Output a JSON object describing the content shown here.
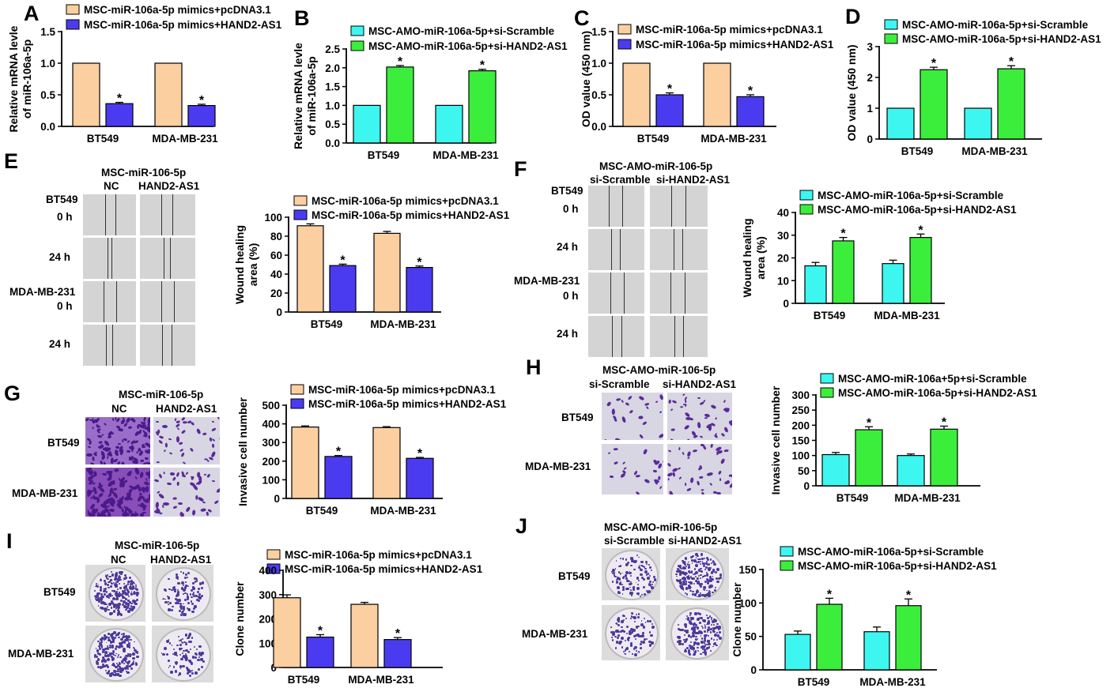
{
  "colors": {
    "orange": "#FCCFA0",
    "blue": "#4B3BF0",
    "cyan": "#3DF6F0",
    "green": "#3CEE3C",
    "wound_bg": "#d4d4d4",
    "stain": "#5a2a9a",
    "clone_stain": "#4a3a9a"
  },
  "charts": {
    "A": {
      "letter": "A",
      "type": "bar",
      "ylabel": [
        "Relative mRNA levle",
        "of miR-106a-5p"
      ],
      "ylim": [
        0,
        1.5
      ],
      "yticks": [
        "0.0",
        "0.5",
        "1.0",
        "1.5"
      ],
      "categories": [
        "BT549",
        "MDA-MB-231"
      ],
      "series": [
        {
          "name": "MSC-miR-106a-5p mimics+pcDNA3.1",
          "color_key": "orange",
          "values": [
            1.0,
            1.0
          ],
          "errors": [
            0,
            0
          ]
        },
        {
          "name": "MSC-miR-106a-5p mimics+HAND2-AS1",
          "color_key": "blue",
          "values": [
            0.36,
            0.33
          ],
          "errors": [
            0.02,
            0.02
          ]
        }
      ],
      "sig": [
        "*",
        "*"
      ]
    },
    "B": {
      "letter": "B",
      "type": "bar",
      "ylabel": [
        "Relative mRNA levle",
        "of miR-106a-5p"
      ],
      "ylim": [
        0,
        2.5
      ],
      "yticks": [
        "0.0",
        "0.5",
        "1.0",
        "1.5",
        "2.0",
        "2.5"
      ],
      "categories": [
        "BT549",
        "MDA-MB-231"
      ],
      "series": [
        {
          "name": "MSC-AMO-miR-106a-5p+si-Scramble",
          "color_key": "cyan",
          "values": [
            1.0,
            1.0
          ],
          "errors": [
            0,
            0
          ]
        },
        {
          "name": "MSC-AMO-miR-106a-5p+si-HAND2-AS1",
          "color_key": "green",
          "values": [
            2.02,
            1.92
          ],
          "errors": [
            0.04,
            0.04
          ]
        }
      ],
      "sig": [
        "*",
        "*"
      ]
    },
    "C": {
      "letter": "C",
      "type": "bar",
      "ylabel": [
        "OD value (450 nm)"
      ],
      "ylim": [
        0,
        1.5
      ],
      "yticks": [
        "0.0",
        "0.5",
        "1.0",
        "1.5"
      ],
      "categories": [
        "BT549",
        "MDA-MB-231"
      ],
      "series": [
        {
          "name": "MSC-miR-106a-5p mimics+pcDNA3.1",
          "color_key": "orange",
          "values": [
            1.0,
            1.0
          ],
          "errors": [
            0,
            0
          ]
        },
        {
          "name": "MSC-miR-106a-5p mimics+HAND2-AS1",
          "color_key": "blue",
          "values": [
            0.5,
            0.47
          ],
          "errors": [
            0.03,
            0.03
          ]
        }
      ],
      "sig": [
        "*",
        "*"
      ]
    },
    "D": {
      "letter": "D",
      "type": "bar",
      "ylabel": [
        "OD value (450 nm)"
      ],
      "ylim": [
        0,
        3
      ],
      "yticks": [
        "0",
        "1",
        "2",
        "3"
      ],
      "categories": [
        "BT549",
        "MDA-MB-231"
      ],
      "series": [
        {
          "name": "MSC-AMO-miR-106a-5p+si-Scramble",
          "color_key": "cyan",
          "values": [
            1.0,
            1.0
          ],
          "errors": [
            0,
            0
          ]
        },
        {
          "name": "MSC-AMO-miR-106a-5p+si-HAND2-AS1",
          "color_key": "green",
          "values": [
            2.25,
            2.28
          ],
          "errors": [
            0.08,
            0.1
          ]
        }
      ],
      "sig": [
        "*",
        "*"
      ]
    },
    "E": {
      "letter": "E",
      "type": "bar",
      "ylabel": [
        "Wound healing",
        "area (%)"
      ],
      "ylim": [
        0,
        100
      ],
      "yticks": [
        "0",
        "20",
        "40",
        "60",
        "80",
        "100"
      ],
      "categories": [
        "BT549",
        "MDA-MB-231"
      ],
      "series": [
        {
          "name": "MSC-miR-106a-5p mimics+pcDNA3.1",
          "color_key": "orange",
          "values": [
            91,
            83
          ],
          "errors": [
            2,
            2
          ]
        },
        {
          "name": "MSC-miR-106a-5p mimics+HAND2-AS1",
          "color_key": "blue",
          "values": [
            49,
            47
          ],
          "errors": [
            1.5,
            1.5
          ]
        }
      ],
      "sig": [
        "*",
        "*"
      ]
    },
    "F": {
      "letter": "F",
      "type": "bar",
      "ylabel": [
        "Wound healing",
        "area (%)"
      ],
      "ylim": [
        0,
        40
      ],
      "yticks": [
        "0",
        "10",
        "20",
        "30",
        "40"
      ],
      "categories": [
        "BT549",
        "MDA-MB-231"
      ],
      "series": [
        {
          "name": "MSC-AMO-miR-106a-5p+si-Scramble",
          "color_key": "cyan",
          "values": [
            16.5,
            17.5
          ],
          "errors": [
            1.5,
            1.5
          ]
        },
        {
          "name": "MSC-AMO-miR-106a-5p+si-HAND2-AS1",
          "color_key": "green",
          "values": [
            27.5,
            29
          ],
          "errors": [
            1.5,
            1.5
          ]
        }
      ],
      "sig": [
        "*",
        "*"
      ]
    },
    "G": {
      "letter": "G",
      "type": "bar",
      "ylabel": [
        "Invasive cell number"
      ],
      "ylim": [
        0,
        500
      ],
      "yticks": [
        "0",
        "100",
        "200",
        "300",
        "400",
        "500"
      ],
      "categories": [
        "BT549",
        "MDA-MB-231"
      ],
      "series": [
        {
          "name": "MSC-miR-106a-5p mimics+pcDNA3.1",
          "color_key": "orange",
          "values": [
            383,
            380
          ],
          "errors": [
            6,
            5
          ]
        },
        {
          "name": "MSC-miR-106a-5p mimics+HAND2-AS1",
          "color_key": "blue",
          "values": [
            225,
            215
          ],
          "errors": [
            5,
            5
          ]
        }
      ],
      "sig": [
        "*",
        "*"
      ]
    },
    "H": {
      "letter": "H",
      "type": "bar",
      "ylabel": [
        "Invasive cell number"
      ],
      "ylim": [
        0,
        300
      ],
      "yticks": [
        "0",
        "50",
        "100",
        "150",
        "200",
        "250",
        "300"
      ],
      "categories": [
        "BT549",
        "MDA-MB-231"
      ],
      "series": [
        {
          "name": "MSC-AMO-miR-106a+5p+si-Scramble",
          "color_key": "cyan",
          "values": [
            103,
            100
          ],
          "errors": [
            7,
            5
          ]
        },
        {
          "name": "MSC-AMO-miR-106a-5p+si-HAND2-AS1",
          "color_key": "green",
          "values": [
            185,
            187
          ],
          "errors": [
            10,
            10
          ]
        }
      ],
      "sig": [
        "*",
        "*"
      ]
    },
    "I": {
      "letter": "I",
      "type": "bar",
      "ylabel": [
        "Clone number"
      ],
      "ylim": [
        0,
        400
      ],
      "yticks": [
        "0",
        "100",
        "200",
        "300",
        "400"
      ],
      "categories": [
        "BT549",
        "MDA-MB-231"
      ],
      "series": [
        {
          "name": "MSC-miR-106a-5p mimics+pcDNA3.1",
          "color_key": "orange",
          "values": [
            287,
            260
          ],
          "errors": [
            12,
            8
          ]
        },
        {
          "name": "MSC-miR-106a-5p mimics+HAND2-AS1",
          "color_key": "blue",
          "values": [
            125,
            115
          ],
          "errors": [
            10,
            8
          ]
        }
      ],
      "sig": [
        "*",
        "*"
      ]
    },
    "J": {
      "letter": "J",
      "type": "bar",
      "ylabel": [
        "Clone number"
      ],
      "ylim": [
        0,
        150
      ],
      "yticks": [
        "0",
        "50",
        "100",
        "150"
      ],
      "categories": [
        "BT549",
        "MDA-MB-231"
      ],
      "series": [
        {
          "name": "MSC-AMO-miR-106a-5p+si-Scramble",
          "color_key": "cyan",
          "values": [
            53,
            57
          ],
          "errors": [
            5,
            7
          ]
        },
        {
          "name": "MSC-AMO-miR-106a-5p+si-HAND2-AS1",
          "color_key": "green",
          "values": [
            98,
            96
          ],
          "errors": [
            9,
            10
          ]
        }
      ],
      "sig": [
        "*",
        "*"
      ]
    }
  },
  "images": {
    "E": {
      "title": "MSC-miR-106-5p",
      "col_labels": [
        "NC",
        "HAND2-AS1"
      ],
      "row_labels": [
        "BT549",
        "0 h",
        "24 h",
        "MDA-MB-231",
        "0 h",
        "24 h"
      ]
    },
    "F": {
      "letter": "F",
      "title": "MSC-AMO-miR-106-5p",
      "col_labels": [
        "si-Scramble",
        "si-HAND2-AS1"
      ],
      "row_labels": [
        "BT549",
        "0 h",
        "24 h",
        "MDA-MB-231",
        "0 h",
        "24 h"
      ]
    },
    "G": {
      "title": "MSC-miR-106-5p",
      "col_labels": [
        "NC",
        "HAND2-AS1"
      ],
      "row_labels": [
        "BT549",
        "MDA-MB-231"
      ]
    },
    "H": {
      "title": "MSC-AMO-miR-106-5p",
      "col_labels": [
        "si-Scramble",
        "si-HAND2-AS1"
      ],
      "row_labels": [
        "BT549",
        "MDA-MB-231"
      ]
    },
    "I": {
      "title": "MSC-miR-106-5p",
      "col_labels": [
        "NC",
        "HAND2-AS1"
      ],
      "row_labels": [
        "BT549",
        "MDA-MB-231"
      ]
    },
    "J": {
      "title": "MSC-AMO-miR-106-5p",
      "col_labels": [
        "si-Scramble",
        "si-HAND2-AS1"
      ],
      "row_labels": [
        "BT549",
        "MDA-MB-231"
      ]
    }
  }
}
